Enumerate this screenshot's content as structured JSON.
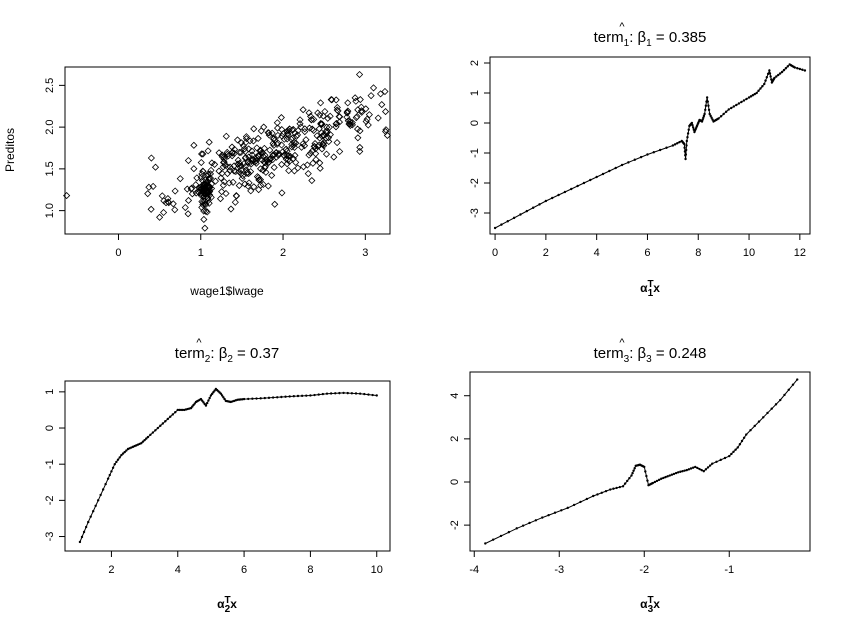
{
  "chart_data": [
    {
      "type": "scatter",
      "title": "",
      "xlabel": "wage1$lwage",
      "ylabel": "Preditos",
      "xlim": [
        -0.65,
        3.3
      ],
      "ylim": [
        0.72,
        2.72
      ],
      "xticks": [
        "0",
        "1",
        "2",
        "3"
      ],
      "yticks": [
        "1.0",
        "1.5",
        "2.0",
        "2.5"
      ],
      "grid": false,
      "legend": "none",
      "marker": "open-diamond",
      "clusters": [
        {
          "cx": 1.05,
          "cy": 1.12,
          "sx": 0.04,
          "sy": 0.18,
          "n": 70
        },
        {
          "cx": 1.55,
          "cy": 1.55,
          "sx": 0.3,
          "sy": 0.3,
          "n": 150
        },
        {
          "cx": 2.1,
          "cy": 1.85,
          "sx": 0.35,
          "sy": 0.3,
          "n": 140
        },
        {
          "cx": 2.75,
          "cy": 2.1,
          "sx": 0.3,
          "sy": 0.3,
          "n": 60
        },
        {
          "cx": 0.75,
          "cy": 1.15,
          "sx": 0.25,
          "sy": 0.2,
          "n": 20
        }
      ],
      "points": [
        [
          -0.63,
          1.18
        ],
        [
          0.37,
          1.28
        ],
        [
          0.4,
          1.63
        ],
        [
          0.45,
          1.52
        ],
        [
          0.5,
          0.92
        ],
        [
          3.2,
          2.27
        ],
        [
          2.93,
          2.63
        ],
        [
          0.85,
          1.6
        ],
        [
          1.05,
          0.79
        ],
        [
          1.42,
          1.1
        ],
        [
          2.35,
          1.36
        ],
        [
          3.1,
          2.47
        ]
      ]
    },
    {
      "type": "line",
      "title_main": "term",
      "title_sub": "1",
      "title_value": ":  β",
      "title_index": "1",
      "title_eq": " = 0.385",
      "xlabel_main": "α",
      "xlabel_sub": "1",
      "xlabel_sup": "T",
      "xlabel_var": "x",
      "xlim": [
        -0.2,
        12.4
      ],
      "ylim": [
        -3.7,
        2.2
      ],
      "xticks": [
        "0",
        "2",
        "4",
        "6",
        "8",
        "10",
        "12"
      ],
      "yticks": [
        "-3",
        "-2",
        "-1",
        "0",
        "1",
        "2"
      ],
      "grid": false,
      "legend": "none",
      "x": [
        0,
        1,
        2,
        3,
        4,
        5,
        6,
        7,
        7.35,
        7.45,
        7.5,
        7.55,
        7.65,
        7.75,
        7.85,
        7.95,
        8.05,
        8.15,
        8.25,
        8.35,
        8.45,
        8.6,
        8.8,
        9.2,
        9.6,
        10,
        10.3,
        10.6,
        10.8,
        10.9,
        11.0,
        11.3,
        11.6,
        11.8,
        12.2
      ],
      "y": [
        -3.5,
        -3.05,
        -2.6,
        -2.2,
        -1.8,
        -1.4,
        -1.05,
        -0.75,
        -0.6,
        -0.7,
        -1.2,
        -0.6,
        -0.1,
        0.0,
        -0.3,
        -0.1,
        0.1,
        0.05,
        0.3,
        0.85,
        0.3,
        0.05,
        0.15,
        0.45,
        0.65,
        0.85,
        1.0,
        1.3,
        1.75,
        1.35,
        1.5,
        1.7,
        1.95,
        1.85,
        1.75
      ]
    },
    {
      "type": "line",
      "title_main": "term",
      "title_sub": "2",
      "title_value": ":  β",
      "title_index": "2",
      "title_eq": " = 0.37",
      "xlabel_main": "α",
      "xlabel_sub": "2",
      "xlabel_sup": "T",
      "xlabel_var": "x",
      "xlim": [
        0.6,
        10.4
      ],
      "ylim": [
        -3.4,
        1.3
      ],
      "xticks": [
        "2",
        "4",
        "6",
        "8",
        "10"
      ],
      "yticks": [
        "-3",
        "-2",
        "-1",
        "0",
        "1"
      ],
      "grid": false,
      "legend": "none",
      "x": [
        1.05,
        1.3,
        1.6,
        1.9,
        2.1,
        2.3,
        2.5,
        2.7,
        2.9,
        3.1,
        3.4,
        3.7,
        4.0,
        4.2,
        4.4,
        4.55,
        4.7,
        4.85,
        5.0,
        5.15,
        5.3,
        5.45,
        5.6,
        5.8,
        6.0,
        6.5,
        7.0,
        7.5,
        8.0,
        8.5,
        9.0,
        9.5,
        10.0
      ],
      "y": [
        -3.15,
        -2.6,
        -2.0,
        -1.4,
        -1.0,
        -0.75,
        -0.58,
        -0.5,
        -0.42,
        -0.25,
        0.0,
        0.25,
        0.5,
        0.5,
        0.55,
        0.72,
        0.8,
        0.62,
        0.9,
        1.08,
        0.95,
        0.75,
        0.72,
        0.78,
        0.8,
        0.82,
        0.85,
        0.88,
        0.9,
        0.95,
        0.97,
        0.95,
        0.9
      ]
    },
    {
      "type": "line",
      "title_main": "term",
      "title_sub": "3",
      "title_value": ":  β",
      "title_index": "3",
      "title_eq": " = 0.248",
      "xlabel_main": "α",
      "xlabel_sub": "3",
      "xlabel_sup": "T",
      "xlabel_var": "x",
      "xlim": [
        -4.05,
        -0.05
      ],
      "ylim": [
        -3.2,
        5.1
      ],
      "xticks": [
        "-4",
        "-3",
        "-2",
        "-1"
      ],
      "yticks": [
        "-2",
        "0",
        "2",
        "4"
      ],
      "grid": false,
      "legend": "none",
      "x": [
        -3.87,
        -3.5,
        -3.2,
        -2.9,
        -2.6,
        -2.4,
        -2.25,
        -2.15,
        -2.1,
        -2.05,
        -2.0,
        -1.95,
        -1.9,
        -1.8,
        -1.7,
        -1.6,
        -1.5,
        -1.4,
        -1.3,
        -1.2,
        -1.0,
        -0.9,
        -0.8,
        -0.6,
        -0.4,
        -0.2
      ],
      "y": [
        -2.85,
        -2.15,
        -1.65,
        -1.2,
        -0.65,
        -0.35,
        -0.2,
        0.3,
        0.75,
        0.8,
        0.7,
        -0.15,
        -0.05,
        0.15,
        0.3,
        0.45,
        0.55,
        0.7,
        0.5,
        0.85,
        1.2,
        1.6,
        2.2,
        3.0,
        3.8,
        4.75
      ]
    }
  ]
}
